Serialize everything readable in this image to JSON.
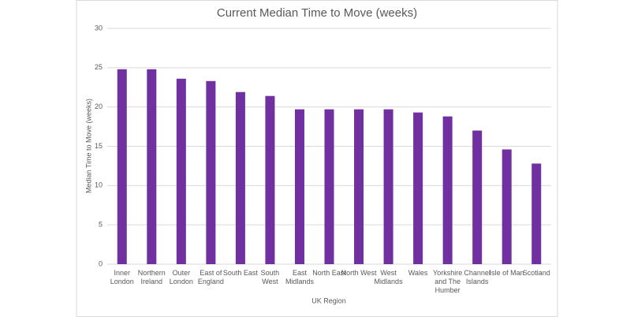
{
  "chart_data": {
    "type": "bar",
    "title": "Current Median Time to Move (weeks)",
    "x_label": "UK Region",
    "y_label": "Median Time to Move (weeks)",
    "categories": [
      "Inner London",
      "Northern Ireland",
      "Outer London",
      "East of England",
      "South East",
      "South West",
      "East Midlands",
      "North East",
      "North West",
      "West Midlands",
      "Wales",
      "Yorkshire and The Humber",
      "Channel Islands",
      "Isle of Man",
      "Scotland"
    ],
    "values": [
      24.8,
      24.8,
      23.6,
      23.3,
      21.9,
      21.4,
      19.7,
      19.7,
      19.7,
      19.7,
      19.3,
      18.8,
      17,
      14.6,
      12.8
    ],
    "color": "#7030a0",
    "ylim": [
      0,
      30
    ],
    "yticks": [
      0,
      5,
      10,
      15,
      20,
      25,
      30
    ],
    "grid": true
  }
}
